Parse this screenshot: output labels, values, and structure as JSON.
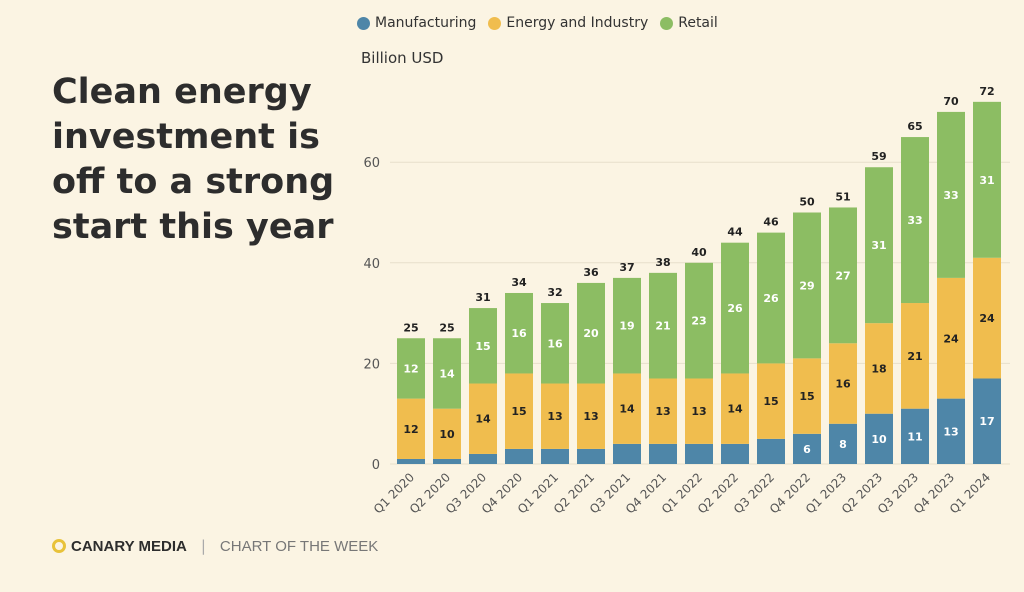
{
  "headline": "Clean energy investment is off to a strong start this year",
  "unit_label": "Billion USD",
  "footer": {
    "brand": "CANARY MEDIA",
    "separator": "|",
    "section": "CHART OF THE WEEK"
  },
  "colors": {
    "manufacturing": "#4e86a8",
    "energy_industry": "#f0bd4e",
    "retail": "#8cbd63",
    "logo": "#e8c23a"
  },
  "chart_data": {
    "type": "bar",
    "stacked": true,
    "categories": [
      "Q1 2020",
      "Q2 2020",
      "Q3 2020",
      "Q4 2020",
      "Q1 2021",
      "Q2 2021",
      "Q3 2021",
      "Q4 2021",
      "Q1 2022",
      "Q2 2022",
      "Q3 2022",
      "Q4 2022",
      "Q1 2023",
      "Q2 2023",
      "Q3 2023",
      "Q4 2023",
      "Q1 2024"
    ],
    "series": [
      {
        "name": "Manufacturing",
        "color": "#4e86a8",
        "values": [
          1,
          1,
          2,
          3,
          3,
          3,
          4,
          4,
          4,
          4,
          5,
          6,
          8,
          10,
          11,
          13,
          17
        ],
        "labels": [
          null,
          null,
          null,
          null,
          null,
          null,
          null,
          null,
          null,
          null,
          null,
          "6",
          "8",
          "10",
          "11",
          "13",
          "17"
        ]
      },
      {
        "name": "Energy and Industry",
        "color": "#f0bd4e",
        "values": [
          12,
          10,
          14,
          15,
          13,
          13,
          14,
          13,
          13,
          14,
          15,
          15,
          16,
          18,
          21,
          24,
          24
        ],
        "labels": [
          "12",
          "10",
          "14",
          "15",
          "13",
          "13",
          "14",
          "13",
          "13",
          "14",
          "15",
          "15",
          "16",
          "18",
          "21",
          "24",
          "24"
        ]
      },
      {
        "name": "Retail",
        "color": "#8cbd63",
        "values": [
          12,
          14,
          15,
          16,
          16,
          20,
          19,
          21,
          23,
          26,
          26,
          29,
          27,
          31,
          33,
          33,
          31
        ],
        "labels": [
          "12",
          "14",
          "15",
          "16",
          "16",
          "20",
          "19",
          "21",
          "23",
          "26",
          "26",
          "29",
          "27",
          "31",
          "33",
          "33",
          "31"
        ]
      }
    ],
    "totals": [
      "25",
      "25",
      "31",
      "34",
      "32",
      "36",
      "37",
      "38",
      "40",
      "44",
      "46",
      "50",
      "51",
      "59",
      "65",
      "70",
      "72"
    ],
    "ylabel": "Billion USD",
    "ylim": [
      0,
      77
    ],
    "yticks": [
      0,
      20,
      40,
      60
    ],
    "grid": true,
    "legend_position": "top"
  }
}
